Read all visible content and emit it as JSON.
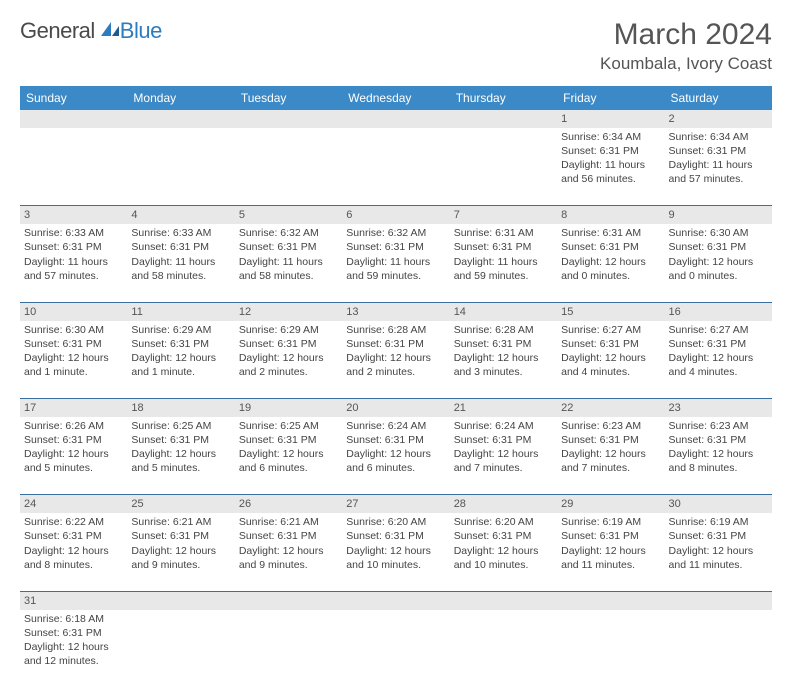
{
  "brand": {
    "part1": "General",
    "part2": "Blue"
  },
  "title": "March 2024",
  "location": "Koumbala, Ivory Coast",
  "colors": {
    "header_bg": "#3b89c6",
    "header_text": "#ffffff",
    "row_divider": "#3b6fa0",
    "daynum_bg": "#e8e8e8",
    "brand_gray": "#4a4a4a",
    "brand_blue": "#2e7cc0",
    "body_text": "#444444"
  },
  "weekdays": [
    "Sunday",
    "Monday",
    "Tuesday",
    "Wednesday",
    "Thursday",
    "Friday",
    "Saturday"
  ],
  "weeks": [
    [
      null,
      null,
      null,
      null,
      null,
      {
        "n": "1",
        "sr": "Sunrise: 6:34 AM",
        "ss": "Sunset: 6:31 PM",
        "d1": "Daylight: 11 hours",
        "d2": "and 56 minutes."
      },
      {
        "n": "2",
        "sr": "Sunrise: 6:34 AM",
        "ss": "Sunset: 6:31 PM",
        "d1": "Daylight: 11 hours",
        "d2": "and 57 minutes."
      }
    ],
    [
      {
        "n": "3",
        "sr": "Sunrise: 6:33 AM",
        "ss": "Sunset: 6:31 PM",
        "d1": "Daylight: 11 hours",
        "d2": "and 57 minutes."
      },
      {
        "n": "4",
        "sr": "Sunrise: 6:33 AM",
        "ss": "Sunset: 6:31 PM",
        "d1": "Daylight: 11 hours",
        "d2": "and 58 minutes."
      },
      {
        "n": "5",
        "sr": "Sunrise: 6:32 AM",
        "ss": "Sunset: 6:31 PM",
        "d1": "Daylight: 11 hours",
        "d2": "and 58 minutes."
      },
      {
        "n": "6",
        "sr": "Sunrise: 6:32 AM",
        "ss": "Sunset: 6:31 PM",
        "d1": "Daylight: 11 hours",
        "d2": "and 59 minutes."
      },
      {
        "n": "7",
        "sr": "Sunrise: 6:31 AM",
        "ss": "Sunset: 6:31 PM",
        "d1": "Daylight: 11 hours",
        "d2": "and 59 minutes."
      },
      {
        "n": "8",
        "sr": "Sunrise: 6:31 AM",
        "ss": "Sunset: 6:31 PM",
        "d1": "Daylight: 12 hours",
        "d2": "and 0 minutes."
      },
      {
        "n": "9",
        "sr": "Sunrise: 6:30 AM",
        "ss": "Sunset: 6:31 PM",
        "d1": "Daylight: 12 hours",
        "d2": "and 0 minutes."
      }
    ],
    [
      {
        "n": "10",
        "sr": "Sunrise: 6:30 AM",
        "ss": "Sunset: 6:31 PM",
        "d1": "Daylight: 12 hours",
        "d2": "and 1 minute."
      },
      {
        "n": "11",
        "sr": "Sunrise: 6:29 AM",
        "ss": "Sunset: 6:31 PM",
        "d1": "Daylight: 12 hours",
        "d2": "and 1 minute."
      },
      {
        "n": "12",
        "sr": "Sunrise: 6:29 AM",
        "ss": "Sunset: 6:31 PM",
        "d1": "Daylight: 12 hours",
        "d2": "and 2 minutes."
      },
      {
        "n": "13",
        "sr": "Sunrise: 6:28 AM",
        "ss": "Sunset: 6:31 PM",
        "d1": "Daylight: 12 hours",
        "d2": "and 2 minutes."
      },
      {
        "n": "14",
        "sr": "Sunrise: 6:28 AM",
        "ss": "Sunset: 6:31 PM",
        "d1": "Daylight: 12 hours",
        "d2": "and 3 minutes."
      },
      {
        "n": "15",
        "sr": "Sunrise: 6:27 AM",
        "ss": "Sunset: 6:31 PM",
        "d1": "Daylight: 12 hours",
        "d2": "and 4 minutes."
      },
      {
        "n": "16",
        "sr": "Sunrise: 6:27 AM",
        "ss": "Sunset: 6:31 PM",
        "d1": "Daylight: 12 hours",
        "d2": "and 4 minutes."
      }
    ],
    [
      {
        "n": "17",
        "sr": "Sunrise: 6:26 AM",
        "ss": "Sunset: 6:31 PM",
        "d1": "Daylight: 12 hours",
        "d2": "and 5 minutes."
      },
      {
        "n": "18",
        "sr": "Sunrise: 6:25 AM",
        "ss": "Sunset: 6:31 PM",
        "d1": "Daylight: 12 hours",
        "d2": "and 5 minutes."
      },
      {
        "n": "19",
        "sr": "Sunrise: 6:25 AM",
        "ss": "Sunset: 6:31 PM",
        "d1": "Daylight: 12 hours",
        "d2": "and 6 minutes."
      },
      {
        "n": "20",
        "sr": "Sunrise: 6:24 AM",
        "ss": "Sunset: 6:31 PM",
        "d1": "Daylight: 12 hours",
        "d2": "and 6 minutes."
      },
      {
        "n": "21",
        "sr": "Sunrise: 6:24 AM",
        "ss": "Sunset: 6:31 PM",
        "d1": "Daylight: 12 hours",
        "d2": "and 7 minutes."
      },
      {
        "n": "22",
        "sr": "Sunrise: 6:23 AM",
        "ss": "Sunset: 6:31 PM",
        "d1": "Daylight: 12 hours",
        "d2": "and 7 minutes."
      },
      {
        "n": "23",
        "sr": "Sunrise: 6:23 AM",
        "ss": "Sunset: 6:31 PM",
        "d1": "Daylight: 12 hours",
        "d2": "and 8 minutes."
      }
    ],
    [
      {
        "n": "24",
        "sr": "Sunrise: 6:22 AM",
        "ss": "Sunset: 6:31 PM",
        "d1": "Daylight: 12 hours",
        "d2": "and 8 minutes."
      },
      {
        "n": "25",
        "sr": "Sunrise: 6:21 AM",
        "ss": "Sunset: 6:31 PM",
        "d1": "Daylight: 12 hours",
        "d2": "and 9 minutes."
      },
      {
        "n": "26",
        "sr": "Sunrise: 6:21 AM",
        "ss": "Sunset: 6:31 PM",
        "d1": "Daylight: 12 hours",
        "d2": "and 9 minutes."
      },
      {
        "n": "27",
        "sr": "Sunrise: 6:20 AM",
        "ss": "Sunset: 6:31 PM",
        "d1": "Daylight: 12 hours",
        "d2": "and 10 minutes."
      },
      {
        "n": "28",
        "sr": "Sunrise: 6:20 AM",
        "ss": "Sunset: 6:31 PM",
        "d1": "Daylight: 12 hours",
        "d2": "and 10 minutes."
      },
      {
        "n": "29",
        "sr": "Sunrise: 6:19 AM",
        "ss": "Sunset: 6:31 PM",
        "d1": "Daylight: 12 hours",
        "d2": "and 11 minutes."
      },
      {
        "n": "30",
        "sr": "Sunrise: 6:19 AM",
        "ss": "Sunset: 6:31 PM",
        "d1": "Daylight: 12 hours",
        "d2": "and 11 minutes."
      }
    ],
    [
      {
        "n": "31",
        "sr": "Sunrise: 6:18 AM",
        "ss": "Sunset: 6:31 PM",
        "d1": "Daylight: 12 hours",
        "d2": "and 12 minutes."
      },
      null,
      null,
      null,
      null,
      null,
      null
    ]
  ]
}
